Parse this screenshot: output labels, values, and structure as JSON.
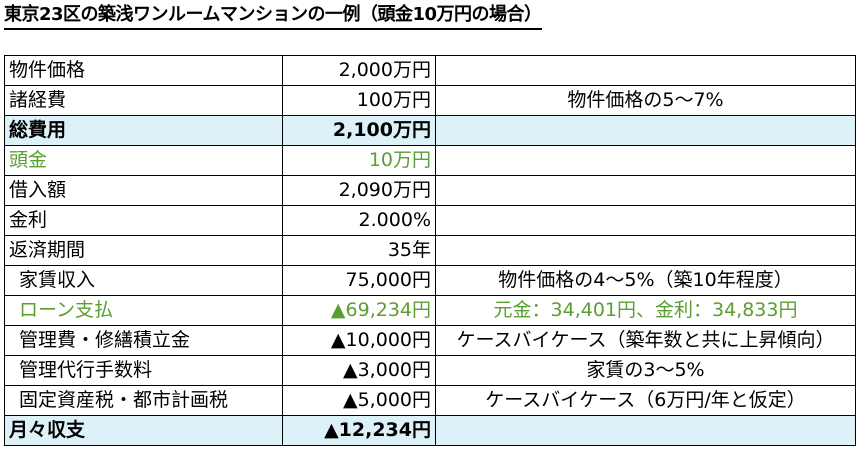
{
  "title": "東京23区の築浅ワンルームマンションの一例（頭金10万円の場合）",
  "rows": [
    {
      "label": "物件価格",
      "value": "2,000万円",
      "note": ""
    },
    {
      "label": "諸経費",
      "value": "100万円",
      "note": "物件価格の5～7%"
    },
    {
      "label": "総費用",
      "value": "2,100万円",
      "note": ""
    },
    {
      "label": "頭金",
      "value": "10万円",
      "note": ""
    },
    {
      "label": "借入額",
      "value": "2,090万円",
      "note": ""
    },
    {
      "label": "金利",
      "value": "2.000%",
      "note": ""
    },
    {
      "label": "返済期間",
      "value": "35年",
      "note": ""
    },
    {
      "label": "家賃収入",
      "value": "75,000円",
      "note": "物件価格の4～5%（築10年程度）"
    },
    {
      "label": "ローン支払",
      "value": "▲69,234円",
      "note": "元金：34,401円、金利：34,833円"
    },
    {
      "label": "管理費・修繕積立金",
      "value": "▲10,000円",
      "note": "ケースバイケース（築年数と共に上昇傾向）"
    },
    {
      "label": "管理代行手数料",
      "value": "▲3,000円",
      "note": "家賃の3～5%"
    },
    {
      "label": "固定資産税・都市計画税",
      "value": "▲5,000円",
      "note": "ケースバイケース（6万円/年と仮定）"
    },
    {
      "label": "月々収支",
      "value": "▲12,234円",
      "note": ""
    }
  ],
  "colors": {
    "highlight_fill": "#ddf1f8",
    "green_text": "#5a9e32",
    "border": "#000000"
  }
}
